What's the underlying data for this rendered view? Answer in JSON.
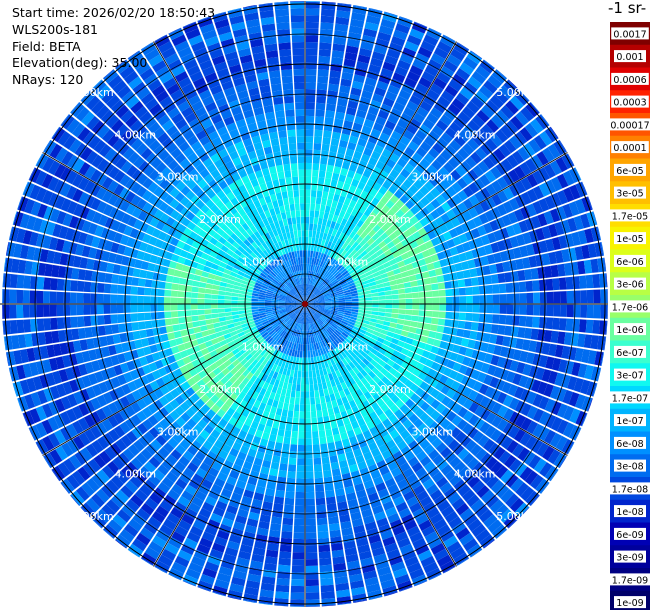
{
  "info": {
    "start_time": "Start time: 2026/02/20 18:50:43",
    "instrument": "WLS200s-181",
    "field": "Field: BETA",
    "elevation": "Elevation(deg): 35.00",
    "nrays": "NRays: 120"
  },
  "colorbar": {
    "title": "-1 sr-",
    "levels": [
      "0.0017",
      "0.001",
      "0.0006",
      "0.0003",
      "0.00017",
      "0.0001",
      "6e-05",
      "3e-05",
      "1.7e-05",
      "1e-05",
      "6e-06",
      "3e-06",
      "1.7e-06",
      "1e-06",
      "6e-07",
      "3e-07",
      "1.7e-07",
      "1e-07",
      "6e-08",
      "3e-08",
      "1.7e-08",
      "1e-08",
      "6e-09",
      "3e-09",
      "1.7e-09",
      "1e-09"
    ],
    "colors": [
      "#7f0000",
      "#b50000",
      "#e00000",
      "#ff2200",
      "#ff5500",
      "#ff8000",
      "#ffa500",
      "#ffbf00",
      "#ffdd00",
      "#f8f300",
      "#dcff1a",
      "#b8ff45",
      "#98ff6a",
      "#6affa0",
      "#3bffcf",
      "#10f8f0",
      "#00d8ff",
      "#00b4ff",
      "#0090ff",
      "#006cf0",
      "#0048e0",
      "#0024cc",
      "#0000b4",
      "#00009c",
      "#000082",
      "#00006a"
    ]
  },
  "chart_data": {
    "type": "polar-ppi",
    "field": "BETA",
    "units": "-1 sr-",
    "elevation_deg": 35.0,
    "n_rays": 120,
    "range_rings_km": [
      {
        "range": 1.0,
        "label": "1.00km"
      },
      {
        "range": 2.0,
        "label": "2.00km"
      },
      {
        "range": 3.0,
        "label": "3.00km"
      },
      {
        "range": 4.0,
        "label": "4.00km"
      },
      {
        "range": 5.0,
        "label": "5.00km"
      }
    ],
    "spokes_deg": [
      0,
      30,
      60,
      90,
      120,
      150,
      180,
      210,
      240,
      270,
      300,
      330
    ],
    "max_range_km": 5.0,
    "value_profile_by_range": [
      {
        "range_km": 0.0,
        "value": "3e-08"
      },
      {
        "range_km": 0.8,
        "value": "1e-07"
      },
      {
        "range_km": 1.5,
        "value": "1.7e-06"
      },
      {
        "range_km": 2.2,
        "value": "6e-07"
      },
      {
        "range_km": 3.0,
        "value": "6e-08"
      },
      {
        "range_km": 4.0,
        "value": "1.7e-08"
      },
      {
        "range_km": 5.0,
        "value": "3e-08"
      }
    ]
  }
}
